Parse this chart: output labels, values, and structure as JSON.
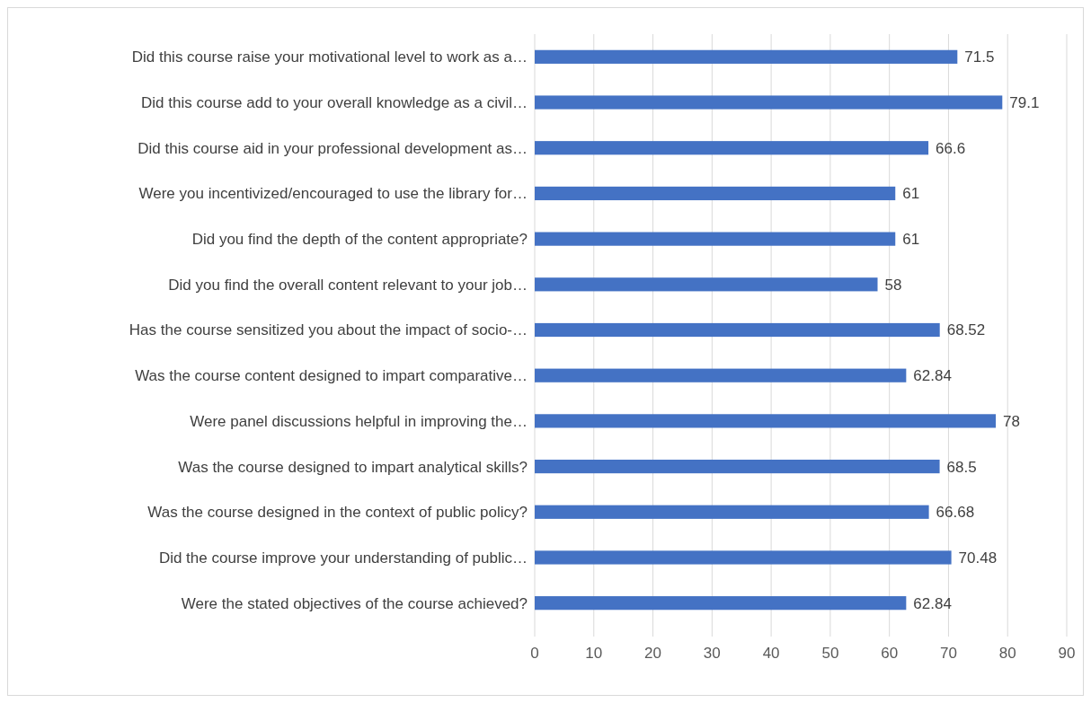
{
  "chart_data": {
    "type": "bar",
    "orientation": "horizontal",
    "categories": [
      "Did this course raise your motivational level to work as a…",
      "Did this course add to your overall knowledge as a civil…",
      "Did this course aid in your professional development as…",
      "Were you incentivized/encouraged to use the library for…",
      "Did you find the depth of the content appropriate?",
      "Did you find the overall content relevant to your job…",
      "Has the course sensitized you about the impact of socio-…",
      "Was the course content designed to impart comparative…",
      "Were panel discussions helpful in improving the…",
      "Was the course designed to impart analytical skills?",
      "Was the course designed in the context of public policy?",
      "Did the course improve your understanding of public…",
      "Were the stated objectives of the course achieved?"
    ],
    "values": [
      71.5,
      79.1,
      66.6,
      61,
      61,
      58,
      68.52,
      62.84,
      78,
      68.5,
      66.68,
      70.48,
      62.84
    ],
    "color": "#4472c4",
    "xlim": [
      0,
      90
    ],
    "xticks": [
      0,
      10,
      20,
      30,
      40,
      50,
      60,
      70,
      80,
      90
    ],
    "grid": "x",
    "data_labels": true
  }
}
